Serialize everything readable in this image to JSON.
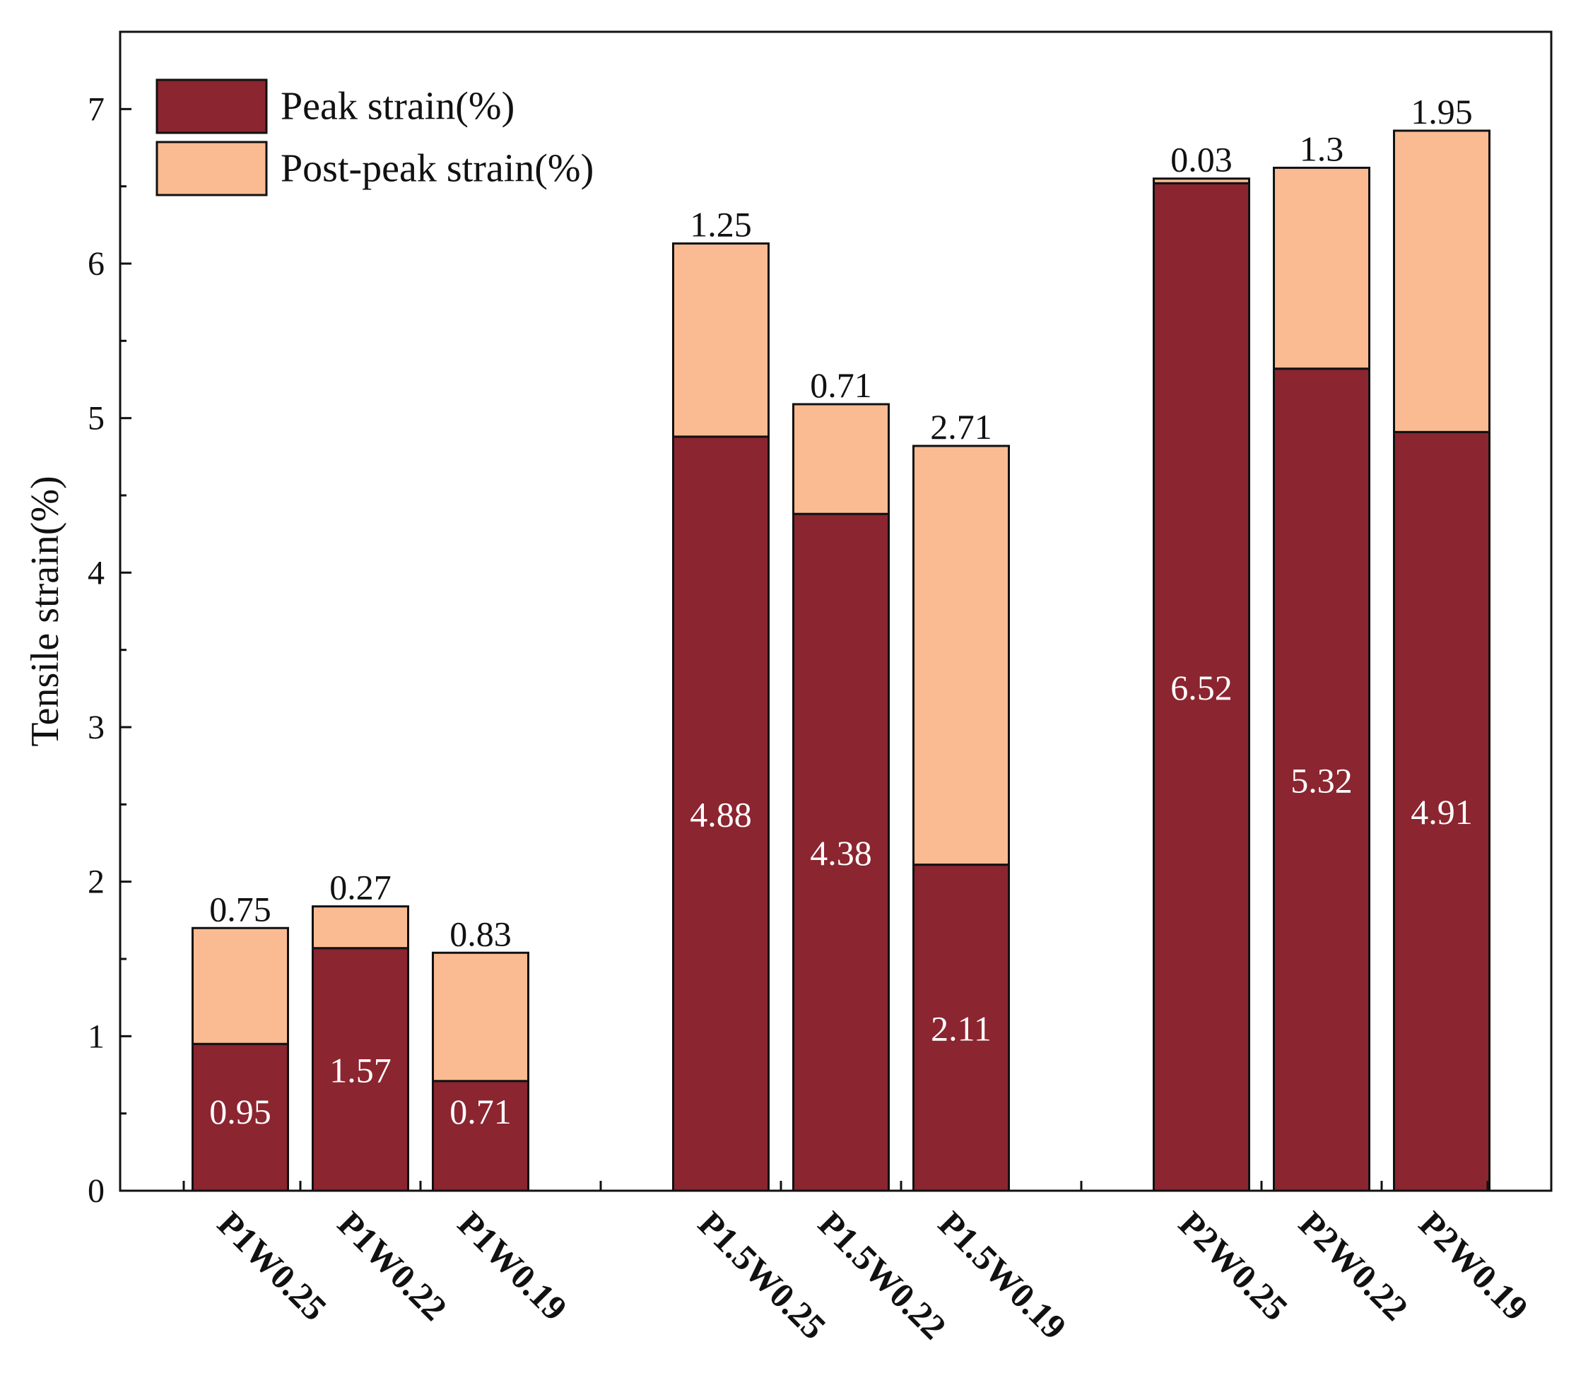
{
  "chart_data": {
    "type": "bar",
    "stacked": true,
    "title": "",
    "xlabel": "",
    "ylabel": "Tensile strain(%)",
    "ylim": [
      0,
      7.5
    ],
    "yticks": [
      0,
      1,
      2,
      3,
      4,
      5,
      6,
      7
    ],
    "legend_position": "top-left",
    "groups": [
      [
        "P1W0.25",
        "P1W0.22",
        "P1W0.19"
      ],
      [
        "P1.5W0.25",
        "P1.5W0.22",
        "P1.5W0.19"
      ],
      [
        "P2W0.25",
        "P2W0.22",
        "P2W0.19"
      ]
    ],
    "categories": [
      "P1W0.25",
      "P1W0.22",
      "P1W0.19",
      "P1.5W0.25",
      "P1.5W0.22",
      "P1.5W0.19",
      "P2W0.25",
      "P2W0.22",
      "P2W0.19"
    ],
    "series": [
      {
        "name": "Peak strain(%)",
        "color": "#8b2530",
        "values": [
          0.95,
          1.57,
          0.71,
          4.88,
          4.38,
          2.11,
          6.52,
          5.32,
          4.91
        ],
        "labels": [
          "0.95",
          "1.57",
          "0.71",
          "4.88",
          "4.38",
          "2.11",
          "6.52",
          "5.32",
          "4.91"
        ]
      },
      {
        "name": "Post-peak strain(%)",
        "color": "#fabb92",
        "values": [
          0.75,
          0.27,
          0.83,
          1.25,
          0.71,
          2.71,
          0.03,
          1.3,
          1.95
        ],
        "labels": [
          "0.75",
          "0.27",
          "0.83",
          "1.25",
          "0.71",
          "2.71",
          "0.03",
          "1.3",
          "1.95"
        ]
      }
    ]
  }
}
